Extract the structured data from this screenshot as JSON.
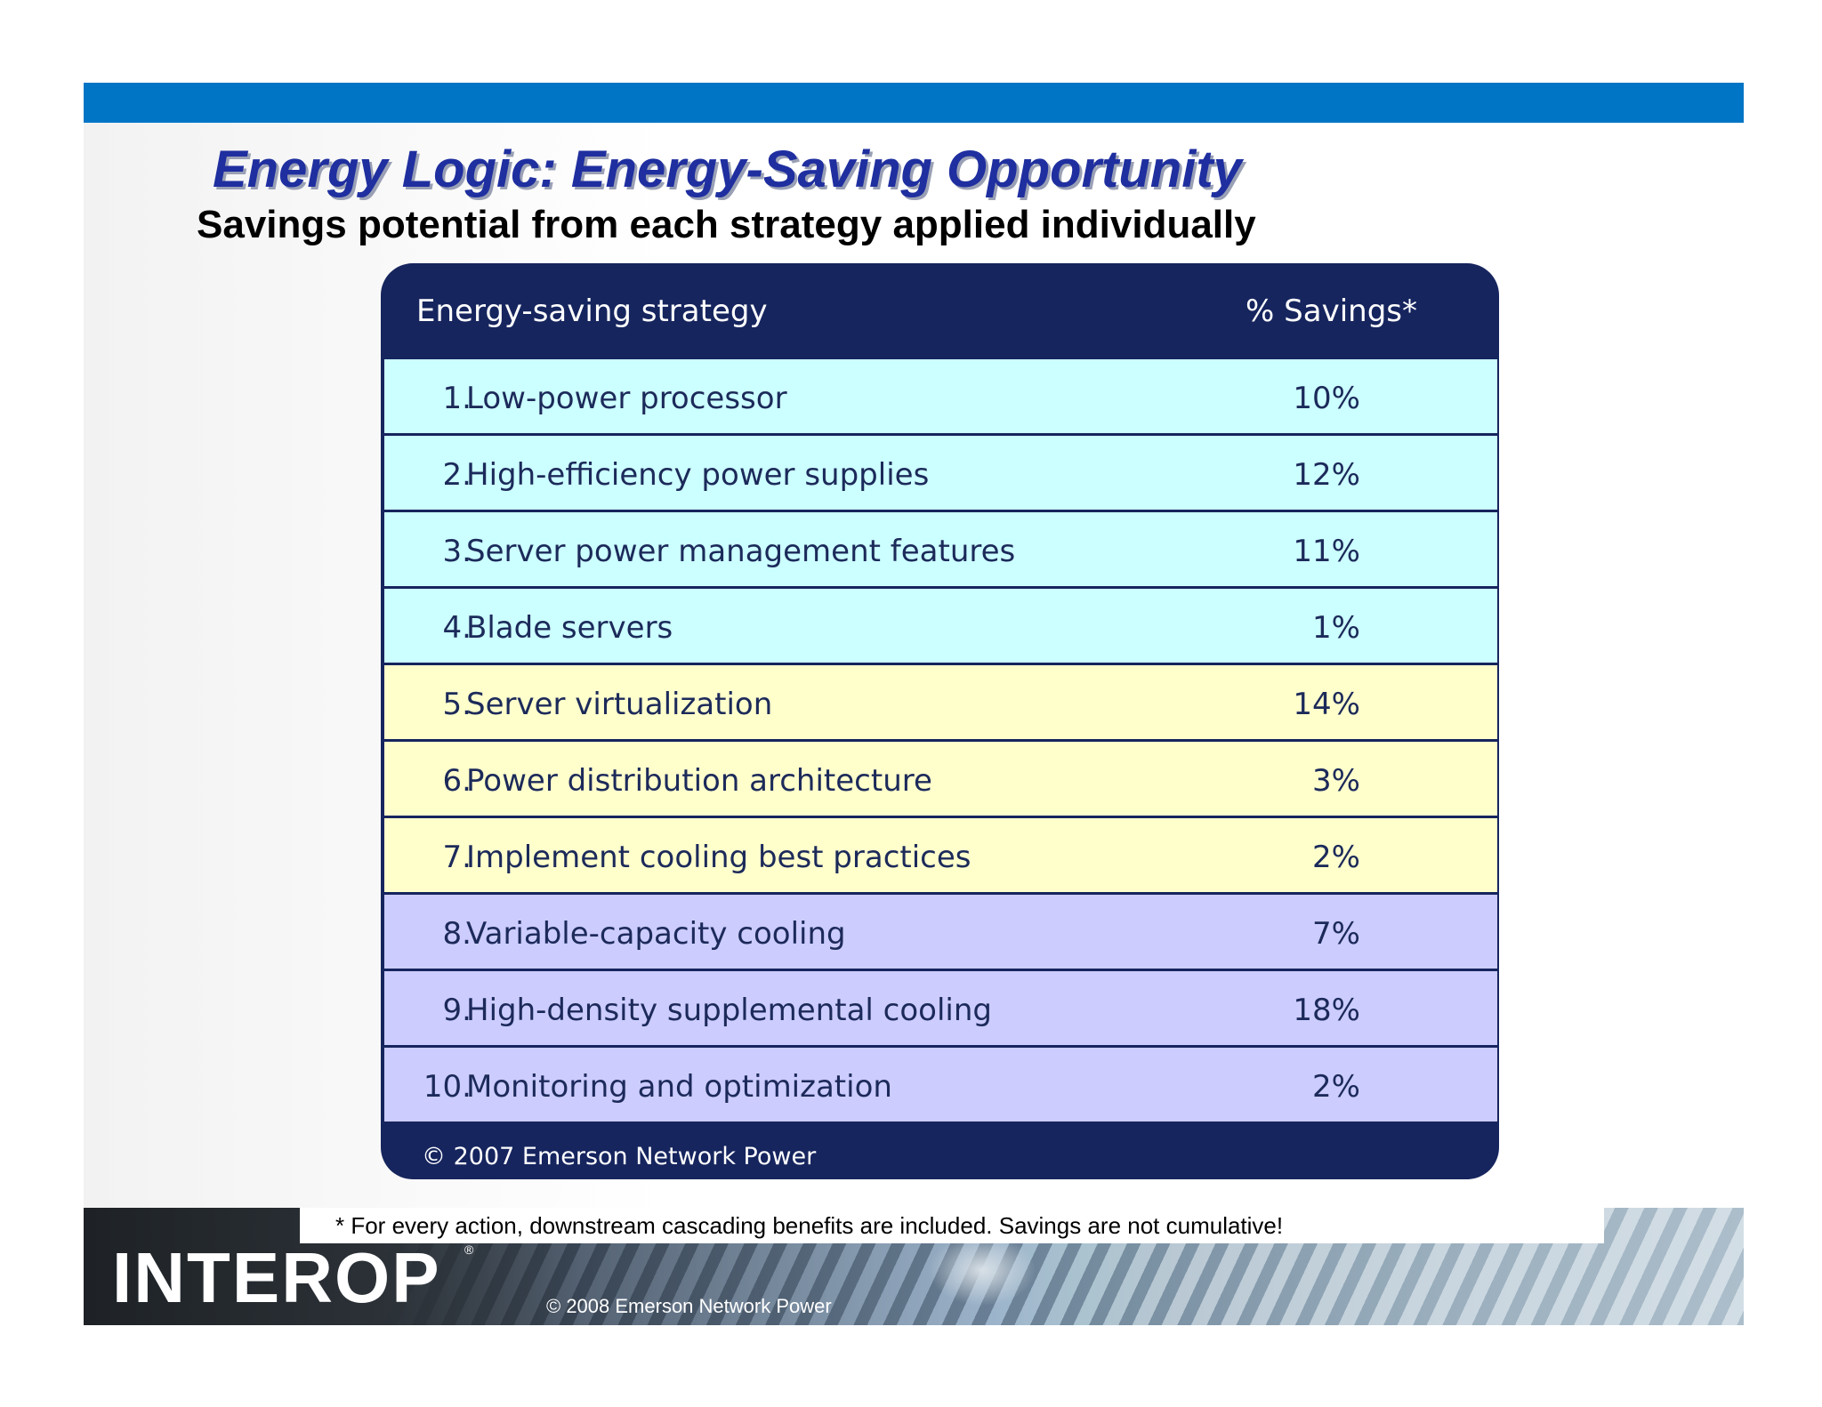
{
  "slide": {
    "title": "Energy Logic: Energy-Saving Opportunity",
    "subtitle": "Savings potential from each strategy applied individually"
  },
  "table": {
    "header_strategy": "Energy-saving strategy",
    "header_savings": "% Savings*",
    "footer": "© 2007 Emerson Network Power",
    "rows": [
      {
        "num": "1.",
        "label": "Low-power processor",
        "pct": "10%"
      },
      {
        "num": "2.",
        "label": "High-efficiency power supplies",
        "pct": "12%"
      },
      {
        "num": "3.",
        "label": "Server power management features",
        "pct": "11%"
      },
      {
        "num": "4.",
        "label": "Blade servers",
        "pct": "1%"
      },
      {
        "num": "5.",
        "label": "Server virtualization",
        "pct": "14%"
      },
      {
        "num": "6.",
        "label": "Power distribution architecture",
        "pct": "3%"
      },
      {
        "num": "7.",
        "label": "Implement cooling best practices",
        "pct": "2%"
      },
      {
        "num": "8.",
        "label": "Variable-capacity cooling",
        "pct": "7%"
      },
      {
        "num": "9.",
        "label": "High-density supplemental cooling",
        "pct": "18%"
      },
      {
        "num": "10.",
        "label": "Monitoring and optimization",
        "pct": "2%"
      }
    ]
  },
  "footnote": "* For every action, downstream cascading benefits are included. Savings are not cumulative!",
  "logo": {
    "text": "INTEROP",
    "mark": "®"
  },
  "copyright": "© 2008 Emerson Network Power",
  "colors": {
    "top_bar": "#0075c5",
    "title": "#1f2f9f",
    "table_dark": "#16255e",
    "group_servers": "#ccffff",
    "group_power": "#ffffcc",
    "group_cooling": "#ccccff"
  }
}
